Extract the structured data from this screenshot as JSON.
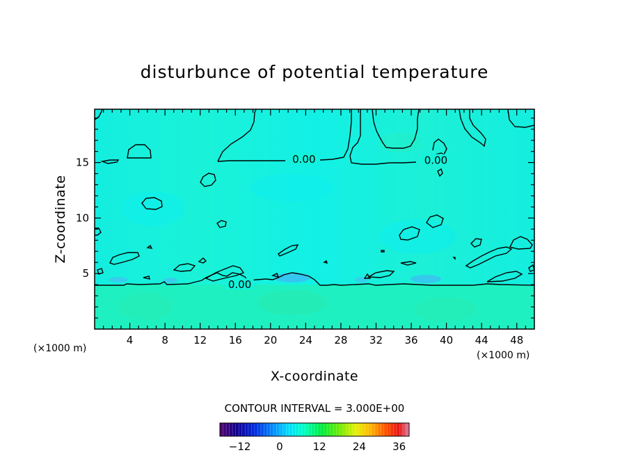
{
  "chart_data": {
    "type": "heatmap",
    "title": "disturbunce of potential temperature",
    "xlabel": "X-coordinate",
    "ylabel": "Z-coordinate",
    "x_unit": "(×1000 m)",
    "y_unit": "(×1000 m)",
    "xlim": [
      0,
      50
    ],
    "ylim": [
      0,
      19.8
    ],
    "x_ticks": [
      4,
      8,
      12,
      16,
      20,
      24,
      28,
      32,
      36,
      40,
      44,
      48
    ],
    "y_ticks": [
      5,
      10,
      15
    ],
    "contour_interval_text": "CONTOUR INTERVAL = 3.000E+00",
    "contour_labels": [
      {
        "text": "0.00",
        "x": 23.8,
        "z": 15.3
      },
      {
        "text": "0.00",
        "x": 38.8,
        "z": 15.2
      },
      {
        "text": "0.00",
        "x": 16.5,
        "z": 4.0
      }
    ],
    "colorbar": {
      "min": -18,
      "max": 39,
      "ticks": [
        -12,
        0,
        12,
        24,
        36
      ],
      "tick_labels": [
        "−12",
        "0",
        "12",
        "24",
        "36"
      ]
    },
    "field_summary": "value approximately 0 throughout (cyan); slightly positive (aqua-green) below 4 km; small negative pockets (light blue) near z 4-5 km",
    "colors": {
      "upper_field": "#14f2da",
      "lower_field": "#1ff0c0",
      "negative_pocket": "#2ab4f5",
      "contour": "#000000"
    }
  }
}
